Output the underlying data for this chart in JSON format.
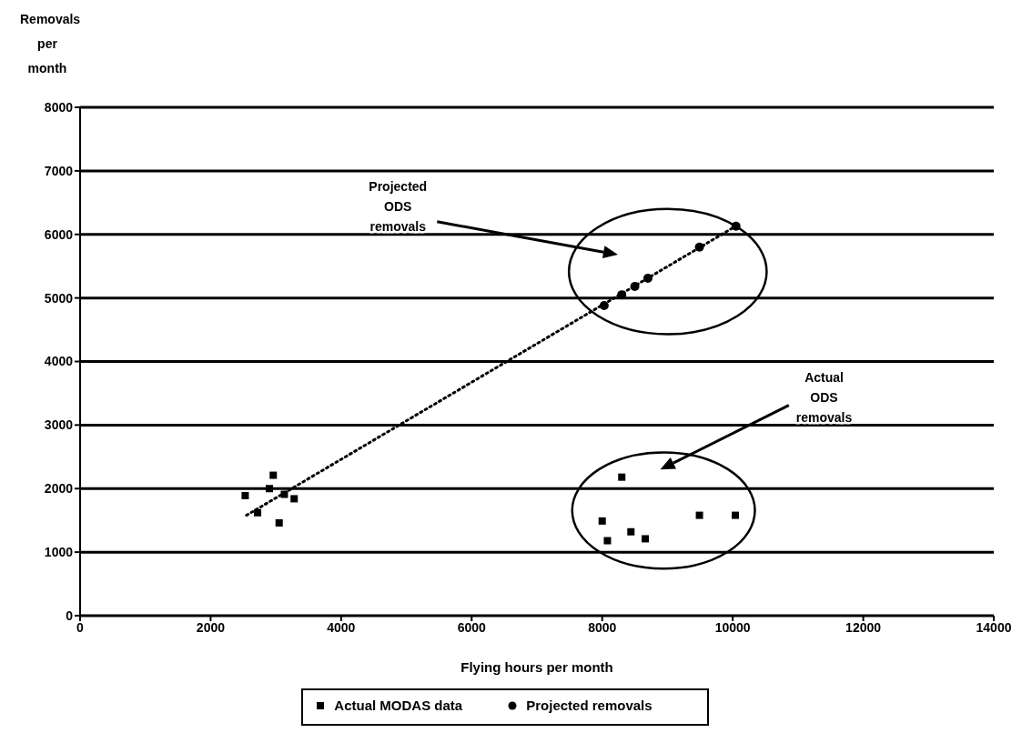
{
  "chart_data": {
    "type": "scatter",
    "xlabel": "Flying hours per month",
    "ylabel": "Removals per month",
    "xlim": [
      0,
      14000
    ],
    "xticks": [
      0,
      2000,
      4000,
      6000,
      8000,
      10000,
      12000,
      14000
    ],
    "ylim": [
      0,
      8000
    ],
    "yticks": [
      0,
      1000,
      2000,
      3000,
      4000,
      5000,
      6000,
      7000,
      8000
    ],
    "grid": "y",
    "legend": "bottom",
    "annotations": [
      "Projected ODS removals",
      "Actual ODS removals"
    ],
    "series": [
      {
        "name": "Actual MODAS data",
        "color": "#000000",
        "marker": "square",
        "x": [
          2530,
          2720,
          2900,
          2960,
          3050,
          3130,
          3280,
          8000,
          8080,
          8300,
          8440,
          8660,
          9490,
          10040
        ],
        "values": [
          1890,
          1620,
          2000,
          2210,
          1460,
          1910,
          1840,
          1490,
          1180,
          2180,
          1320,
          1210,
          1580,
          1580
        ]
      },
      {
        "name": "Projected removals",
        "color": "#000000",
        "marker": "circle",
        "x": [
          8030,
          8300,
          8500,
          8700,
          9490,
          10050
        ],
        "values": [
          4880,
          5050,
          5180,
          5310,
          5800,
          6130
        ]
      },
      {
        "type": "line",
        "color": "#000000",
        "line_style": "dotted",
        "marker": "none",
        "x": [
          2550,
          10080
        ],
        "values": [
          1580,
          6150
        ]
      }
    ]
  }
}
